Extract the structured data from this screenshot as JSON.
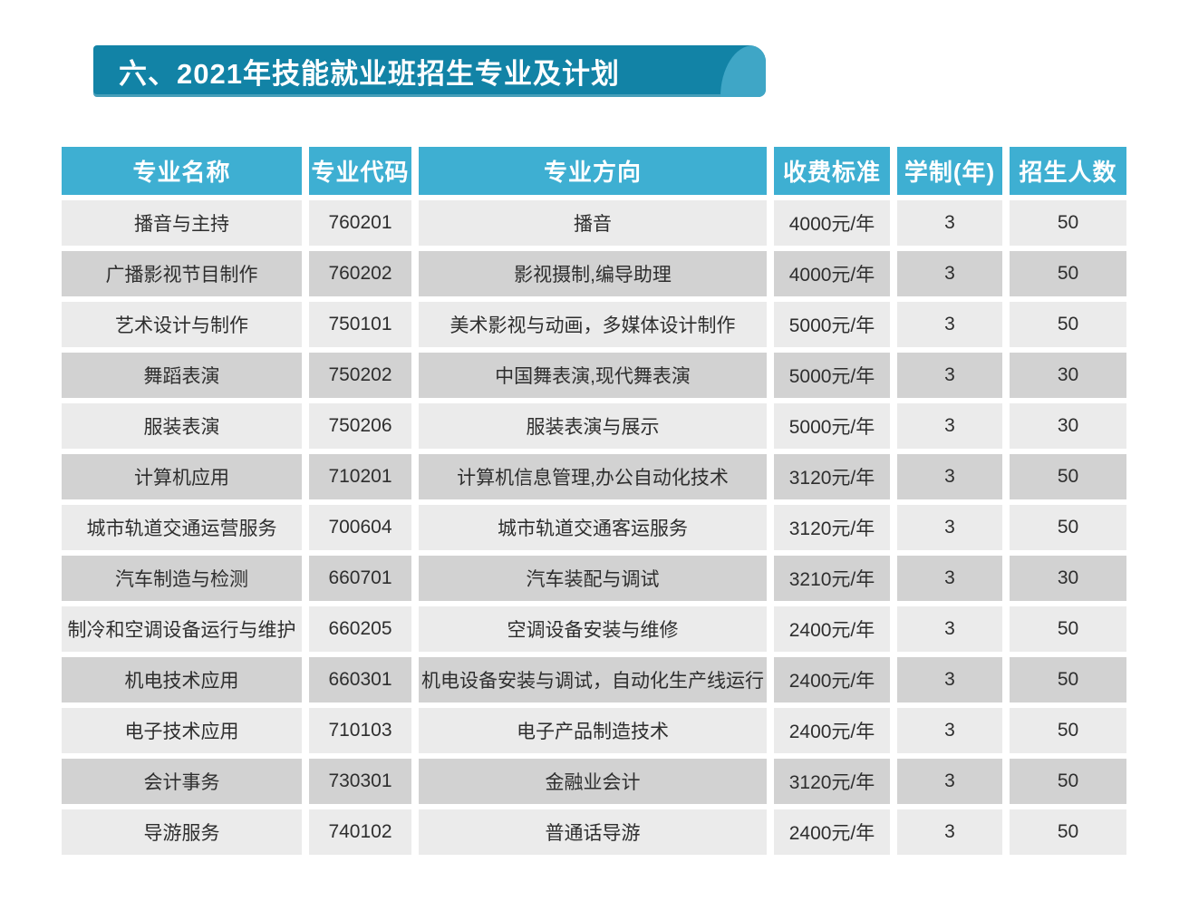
{
  "colors": {
    "banner-bg": "#1283a6",
    "banner-cap": "#3fa6c6",
    "banner-text": "#ffffff",
    "header-bg": "#3eafd2",
    "row-light": "#ebebeb",
    "row-dark": "#d2d2d2",
    "cell-text": "#2e2e2e"
  },
  "banner": {
    "title": "六、2021年技能就业班招生专业及计划"
  },
  "table": {
    "headers": [
      "专业名称",
      "专业代码",
      "专业方向",
      "收费标准",
      "学制(年)",
      "招生人数"
    ],
    "rows": [
      {
        "name": "播音与主持",
        "code": "760201",
        "direction": "播音",
        "fee": "4000元/年",
        "years": "3",
        "count": "50"
      },
      {
        "name": "广播影视节目制作",
        "code": "760202",
        "direction": "影视摄制,编导助理",
        "fee": "4000元/年",
        "years": "3",
        "count": "50"
      },
      {
        "name": "艺术设计与制作",
        "code": "750101",
        "direction": "美术影视与动画，多媒体设计制作",
        "fee": "5000元/年",
        "years": "3",
        "count": "50"
      },
      {
        "name": "舞蹈表演",
        "code": "750202",
        "direction": "中国舞表演,现代舞表演",
        "fee": "5000元/年",
        "years": "3",
        "count": "30"
      },
      {
        "name": "服装表演",
        "code": "750206",
        "direction": "服装表演与展示",
        "fee": "5000元/年",
        "years": "3",
        "count": "30"
      },
      {
        "name": "计算机应用",
        "code": "710201",
        "direction": "计算机信息管理,办公自动化技术",
        "fee": "3120元/年",
        "years": "3",
        "count": "50"
      },
      {
        "name": "城市轨道交通运营服务",
        "code": "700604",
        "direction": "城市轨道交通客运服务",
        "fee": "3120元/年",
        "years": "3",
        "count": "50"
      },
      {
        "name": "汽车制造与检测",
        "code": "660701",
        "direction": "汽车装配与调试",
        "fee": "3210元/年",
        "years": "3",
        "count": "30"
      },
      {
        "name": "制冷和空调设备运行与维护",
        "code": "660205",
        "direction": "空调设备安装与维修",
        "fee": "2400元/年",
        "years": "3",
        "count": "50"
      },
      {
        "name": "机电技术应用",
        "code": "660301",
        "direction": "机电设备安装与调试，自动化生产线运行",
        "fee": "2400元/年",
        "years": "3",
        "count": "50"
      },
      {
        "name": "电子技术应用",
        "code": "710103",
        "direction": "电子产品制造技术",
        "fee": "2400元/年",
        "years": "3",
        "count": "50"
      },
      {
        "name": "会计事务",
        "code": "730301",
        "direction": "金融业会计",
        "fee": "3120元/年",
        "years": "3",
        "count": "50"
      },
      {
        "name": "导游服务",
        "code": "740102",
        "direction": "普通话导游",
        "fee": "2400元/年",
        "years": "3",
        "count": "50"
      }
    ]
  }
}
